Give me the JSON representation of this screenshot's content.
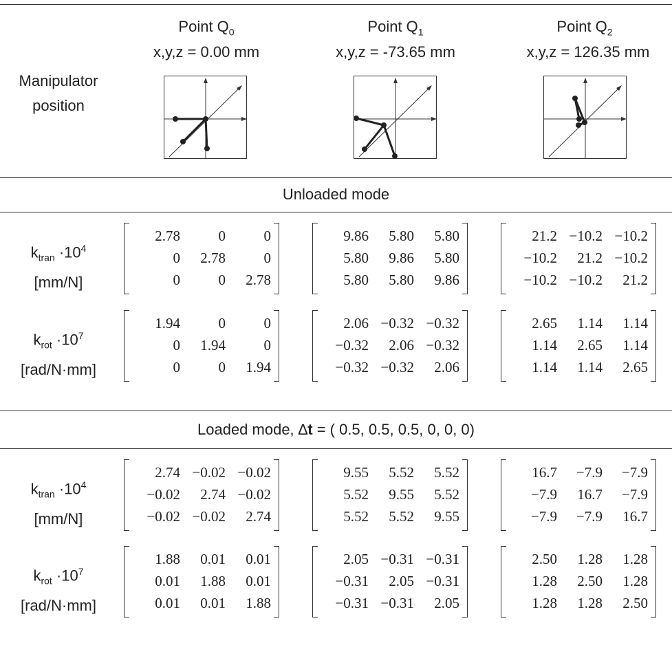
{
  "header": {
    "row_label_line1": "Manipulator",
    "row_label_line2": "position",
    "points": [
      {
        "name": "Point Q",
        "sub": "0",
        "coords": "x,y,z = 0.00 mm"
      },
      {
        "name": "Point Q",
        "sub": "1",
        "coords": "x,y,z = -73.65 mm"
      },
      {
        "name": "Point Q",
        "sub": "2",
        "coords": "x,y,z = 126.35 mm"
      }
    ]
  },
  "unloaded": {
    "title": "Unloaded mode",
    "ktran_label": {
      "k": "k",
      "sub": "tran",
      "mul": " ·10",
      "exp": "4",
      "unit": "[mm/N]"
    },
    "krot_label": {
      "k": "k",
      "sub": "rot",
      "mul": " ·10",
      "exp": "7",
      "unit": "[rad/N·mm]"
    },
    "ktran": [
      [
        [
          "2.78",
          "0",
          "0"
        ],
        [
          "0",
          "2.78",
          "0"
        ],
        [
          "0",
          "0",
          "2.78"
        ]
      ],
      [
        [
          "9.86",
          "5.80",
          "5.80"
        ],
        [
          "5.80",
          "9.86",
          "5.80"
        ],
        [
          "5.80",
          "5.80",
          "9.86"
        ]
      ],
      [
        [
          "21.2",
          "−10.2",
          "−10.2"
        ],
        [
          "−10.2",
          "21.2",
          "−10.2"
        ],
        [
          "−10.2",
          "−10.2",
          "21.2"
        ]
      ]
    ],
    "krot": [
      [
        [
          "1.94",
          "0",
          "0"
        ],
        [
          "0",
          "1.94",
          "0"
        ],
        [
          "0",
          "0",
          "1.94"
        ]
      ],
      [
        [
          "2.06",
          "−0.32",
          "−0.32"
        ],
        [
          "−0.32",
          "2.06",
          "−0.32"
        ],
        [
          "−0.32",
          "−0.32",
          "2.06"
        ]
      ],
      [
        [
          "2.65",
          "1.14",
          "1.14"
        ],
        [
          "1.14",
          "2.65",
          "1.14"
        ],
        [
          "1.14",
          "1.14",
          "2.65"
        ]
      ]
    ]
  },
  "loaded": {
    "title_prefix": "Loaded mode, ",
    "delta": "∆",
    "t": "t",
    "title_suffix": " = ( 0.5, 0.5, 0.5, 0, 0, 0)",
    "ktran_label": {
      "k": "k",
      "sub": "tran",
      "mul": " ·10",
      "exp": "4",
      "unit": "[mm/N]"
    },
    "krot_label": {
      "k": "k",
      "sub": "rot",
      "mul": " ·10",
      "exp": "7",
      "unit": "[rad/N·mm]"
    },
    "ktran": [
      [
        [
          "2.74",
          "−0.02",
          "−0.02"
        ],
        [
          "−0.02",
          "2.74",
          "−0.02"
        ],
        [
          "−0.02",
          "−0.02",
          "2.74"
        ]
      ],
      [
        [
          "9.55",
          "5.52",
          "5.52"
        ],
        [
          "5.52",
          "9.55",
          "5.52"
        ],
        [
          "5.52",
          "5.52",
          "9.55"
        ]
      ],
      [
        [
          "16.7",
          "−7.9",
          "−7.9"
        ],
        [
          "−7.9",
          "16.7",
          "−7.9"
        ],
        [
          "−7.9",
          "−7.9",
          "16.7"
        ]
      ]
    ],
    "krot": [
      [
        [
          "1.88",
          "0.01",
          "0.01"
        ],
        [
          "0.01",
          "1.88",
          "0.01"
        ],
        [
          "0.01",
          "0.01",
          "1.88"
        ]
      ],
      [
        [
          "2.05",
          "−0.31",
          "−0.31"
        ],
        [
          "−0.31",
          "2.05",
          "−0.31"
        ],
        [
          "−0.31",
          "−0.31",
          "2.05"
        ]
      ],
      [
        [
          "2.50",
          "1.28",
          "1.28"
        ],
        [
          "1.28",
          "2.50",
          "1.28"
        ],
        [
          "1.28",
          "1.28",
          "2.50"
        ]
      ]
    ]
  }
}
